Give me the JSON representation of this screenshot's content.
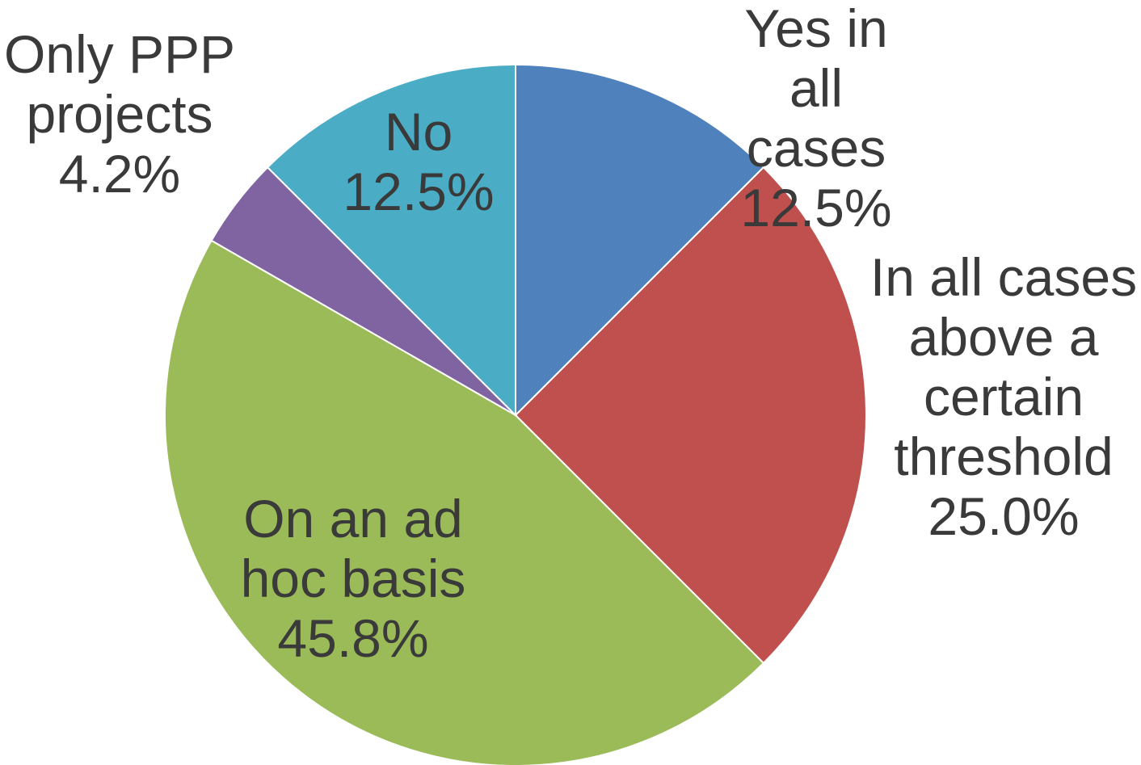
{
  "chart_data": {
    "type": "pie",
    "title": "",
    "slices": [
      {
        "label_lines": [
          "Yes in",
          "all",
          "cases"
        ],
        "percent_label": "12.5%",
        "value": 12.5,
        "color": "#4f81bd"
      },
      {
        "label_lines": [
          "In all cases",
          "above a",
          "certain",
          "threshold"
        ],
        "percent_label": "25.0%",
        "value": 25.0,
        "color": "#c0504d"
      },
      {
        "label_lines": [
          "On an ad",
          "hoc basis"
        ],
        "percent_label": "45.8%",
        "value": 45.8,
        "color": "#9bbb59"
      },
      {
        "label_lines": [
          "Only PPP",
          "projects"
        ],
        "percent_label": "4.2%",
        "value": 4.2,
        "color": "#8064a2"
      },
      {
        "label_lines": [
          "No"
        ],
        "percent_label": "12.5%",
        "value": 12.5,
        "color": "#4bacc6"
      }
    ],
    "start_angle": "12 o'clock",
    "direction": "clockwise",
    "legend": "none"
  },
  "colors": {
    "label_text": "#3a3a3a",
    "slice_border": "#ffffff",
    "background": "#ffffff"
  }
}
